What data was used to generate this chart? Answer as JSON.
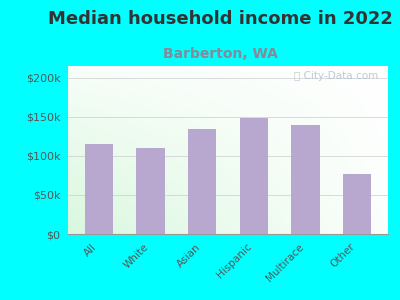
{
  "title": "Median household income in 2022",
  "subtitle": "Barberton, WA",
  "categories": [
    "All",
    "White",
    "Asian",
    "Hispanic",
    "Multirace",
    "Other"
  ],
  "values": [
    115000,
    110000,
    135000,
    148000,
    140000,
    77000
  ],
  "bar_color": "#b8a8d0",
  "background_outer": "#00ffff",
  "yticks": [
    0,
    50000,
    100000,
    150000,
    200000
  ],
  "ytick_labels": [
    "$0",
    "$50k",
    "$100k",
    "$150k",
    "$200k"
  ],
  "ylim": [
    0,
    215000
  ],
  "title_fontsize": 13,
  "subtitle_fontsize": 10,
  "title_color": "#333333",
  "subtitle_color": "#888899",
  "tick_label_color": "#555555",
  "watermark_text": "City-Data.com",
  "watermark_color": "#aab8cc",
  "grad_colors": [
    "#c8e8c8",
    "#f5fff5",
    "#e8f5f8",
    "#ffffff"
  ]
}
